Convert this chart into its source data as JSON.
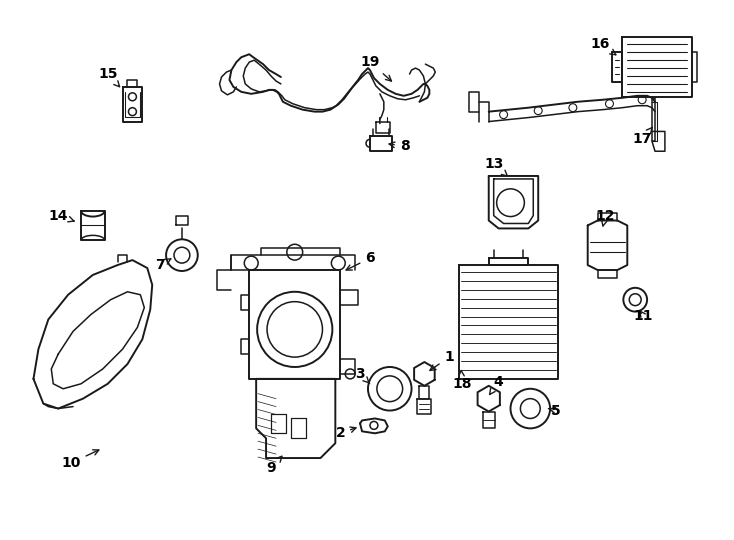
{
  "background_color": "#ffffff",
  "line_color": "#1a1a1a",
  "text_color": "#000000",
  "figsize": [
    7.34,
    5.4
  ],
  "dpi": 100
}
